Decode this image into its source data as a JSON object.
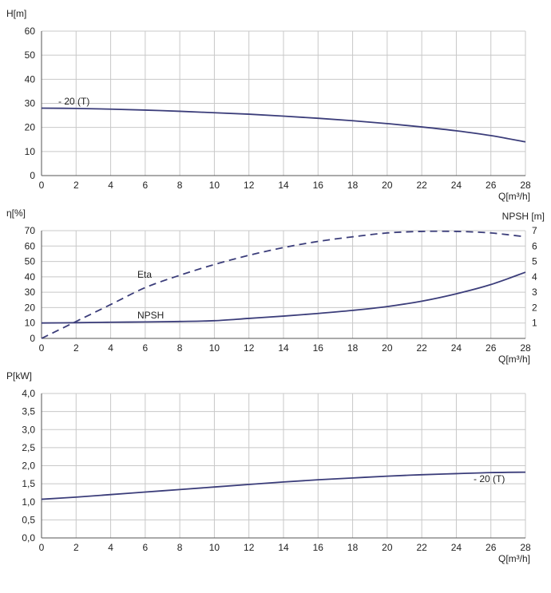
{
  "colors": {
    "curve": "#3b3d7a",
    "grid": "#c8c8c8",
    "axis": "#555555",
    "text": "#222222"
  },
  "chart_data": [
    {
      "type": "line",
      "ylabel": "H[m]",
      "xlabel": "Q[m³/h]",
      "xlim": [
        0,
        28
      ],
      "ylim": [
        0,
        60
      ],
      "x_ticks": [
        "0",
        "2",
        "4",
        "6",
        "8",
        "10",
        "12",
        "14",
        "16",
        "18",
        "20",
        "22",
        "24",
        "26",
        "28"
      ],
      "y_ticks": [
        "0",
        "10",
        "20",
        "30",
        "40",
        "50",
        "60"
      ],
      "grid": true,
      "series": [
        {
          "name": "- 20 (T)",
          "style": "solid",
          "x": [
            0,
            2,
            4,
            6,
            8,
            10,
            12,
            14,
            16,
            18,
            20,
            22,
            24,
            26,
            28
          ],
          "y": [
            28,
            27.9,
            27.6,
            27.2,
            26.7,
            26.1,
            25.5,
            24.7,
            23.8,
            22.8,
            21.6,
            20.2,
            18.6,
            16.6,
            14.0
          ]
        }
      ]
    },
    {
      "type": "line",
      "ylabel": "η[%]",
      "ylabel_right": "NPSH [m]",
      "xlabel": "Q[m³/h]",
      "xlim": [
        0,
        28
      ],
      "ylim": [
        0,
        70
      ],
      "ylim_right": [
        0,
        7
      ],
      "x_ticks": [
        "0",
        "2",
        "4",
        "6",
        "8",
        "10",
        "12",
        "14",
        "16",
        "18",
        "20",
        "22",
        "24",
        "26",
        "28"
      ],
      "y_ticks": [
        "0",
        "10",
        "20",
        "30",
        "40",
        "50",
        "60",
        "70"
      ],
      "y_ticks_right": [
        "1",
        "2",
        "3",
        "4",
        "5",
        "6",
        "7"
      ],
      "grid": true,
      "series": [
        {
          "name": "Eta",
          "style": "dashed",
          "axis": "left",
          "x": [
            0,
            2,
            4,
            6,
            8,
            10,
            12,
            14,
            16,
            18,
            20,
            22,
            24,
            26,
            28
          ],
          "y": [
            0,
            11,
            22,
            33,
            41,
            48,
            54,
            59,
            63,
            66,
            68.5,
            69.5,
            69.5,
            68.5,
            66
          ]
        },
        {
          "name": "NPSH",
          "style": "solid",
          "axis": "right",
          "x": [
            0,
            2,
            4,
            6,
            8,
            10,
            12,
            14,
            16,
            18,
            20,
            22,
            24,
            26,
            28
          ],
          "y": [
            1.0,
            1.02,
            1.05,
            1.07,
            1.1,
            1.15,
            1.3,
            1.45,
            1.62,
            1.82,
            2.07,
            2.42,
            2.9,
            3.5,
            4.3
          ]
        }
      ]
    },
    {
      "type": "line",
      "ylabel": "P[kW]",
      "xlabel": "Q[m³/h]",
      "xlim": [
        0,
        28
      ],
      "ylim": [
        0,
        4.0
      ],
      "x_ticks": [
        "0",
        "2",
        "4",
        "6",
        "8",
        "10",
        "12",
        "14",
        "16",
        "18",
        "20",
        "22",
        "24",
        "26",
        "28"
      ],
      "y_ticks": [
        "0,0",
        "0,5",
        "1,0",
        "1,5",
        "2,0",
        "2,5",
        "3,0",
        "3,5",
        "4,0"
      ],
      "grid": true,
      "series": [
        {
          "name": "- 20 (T)",
          "style": "solid",
          "x": [
            0,
            2,
            4,
            6,
            8,
            10,
            12,
            14,
            16,
            18,
            20,
            22,
            24,
            26,
            28
          ],
          "y": [
            1.07,
            1.13,
            1.2,
            1.27,
            1.34,
            1.41,
            1.48,
            1.55,
            1.61,
            1.66,
            1.71,
            1.75,
            1.78,
            1.81,
            1.82
          ]
        }
      ]
    }
  ]
}
